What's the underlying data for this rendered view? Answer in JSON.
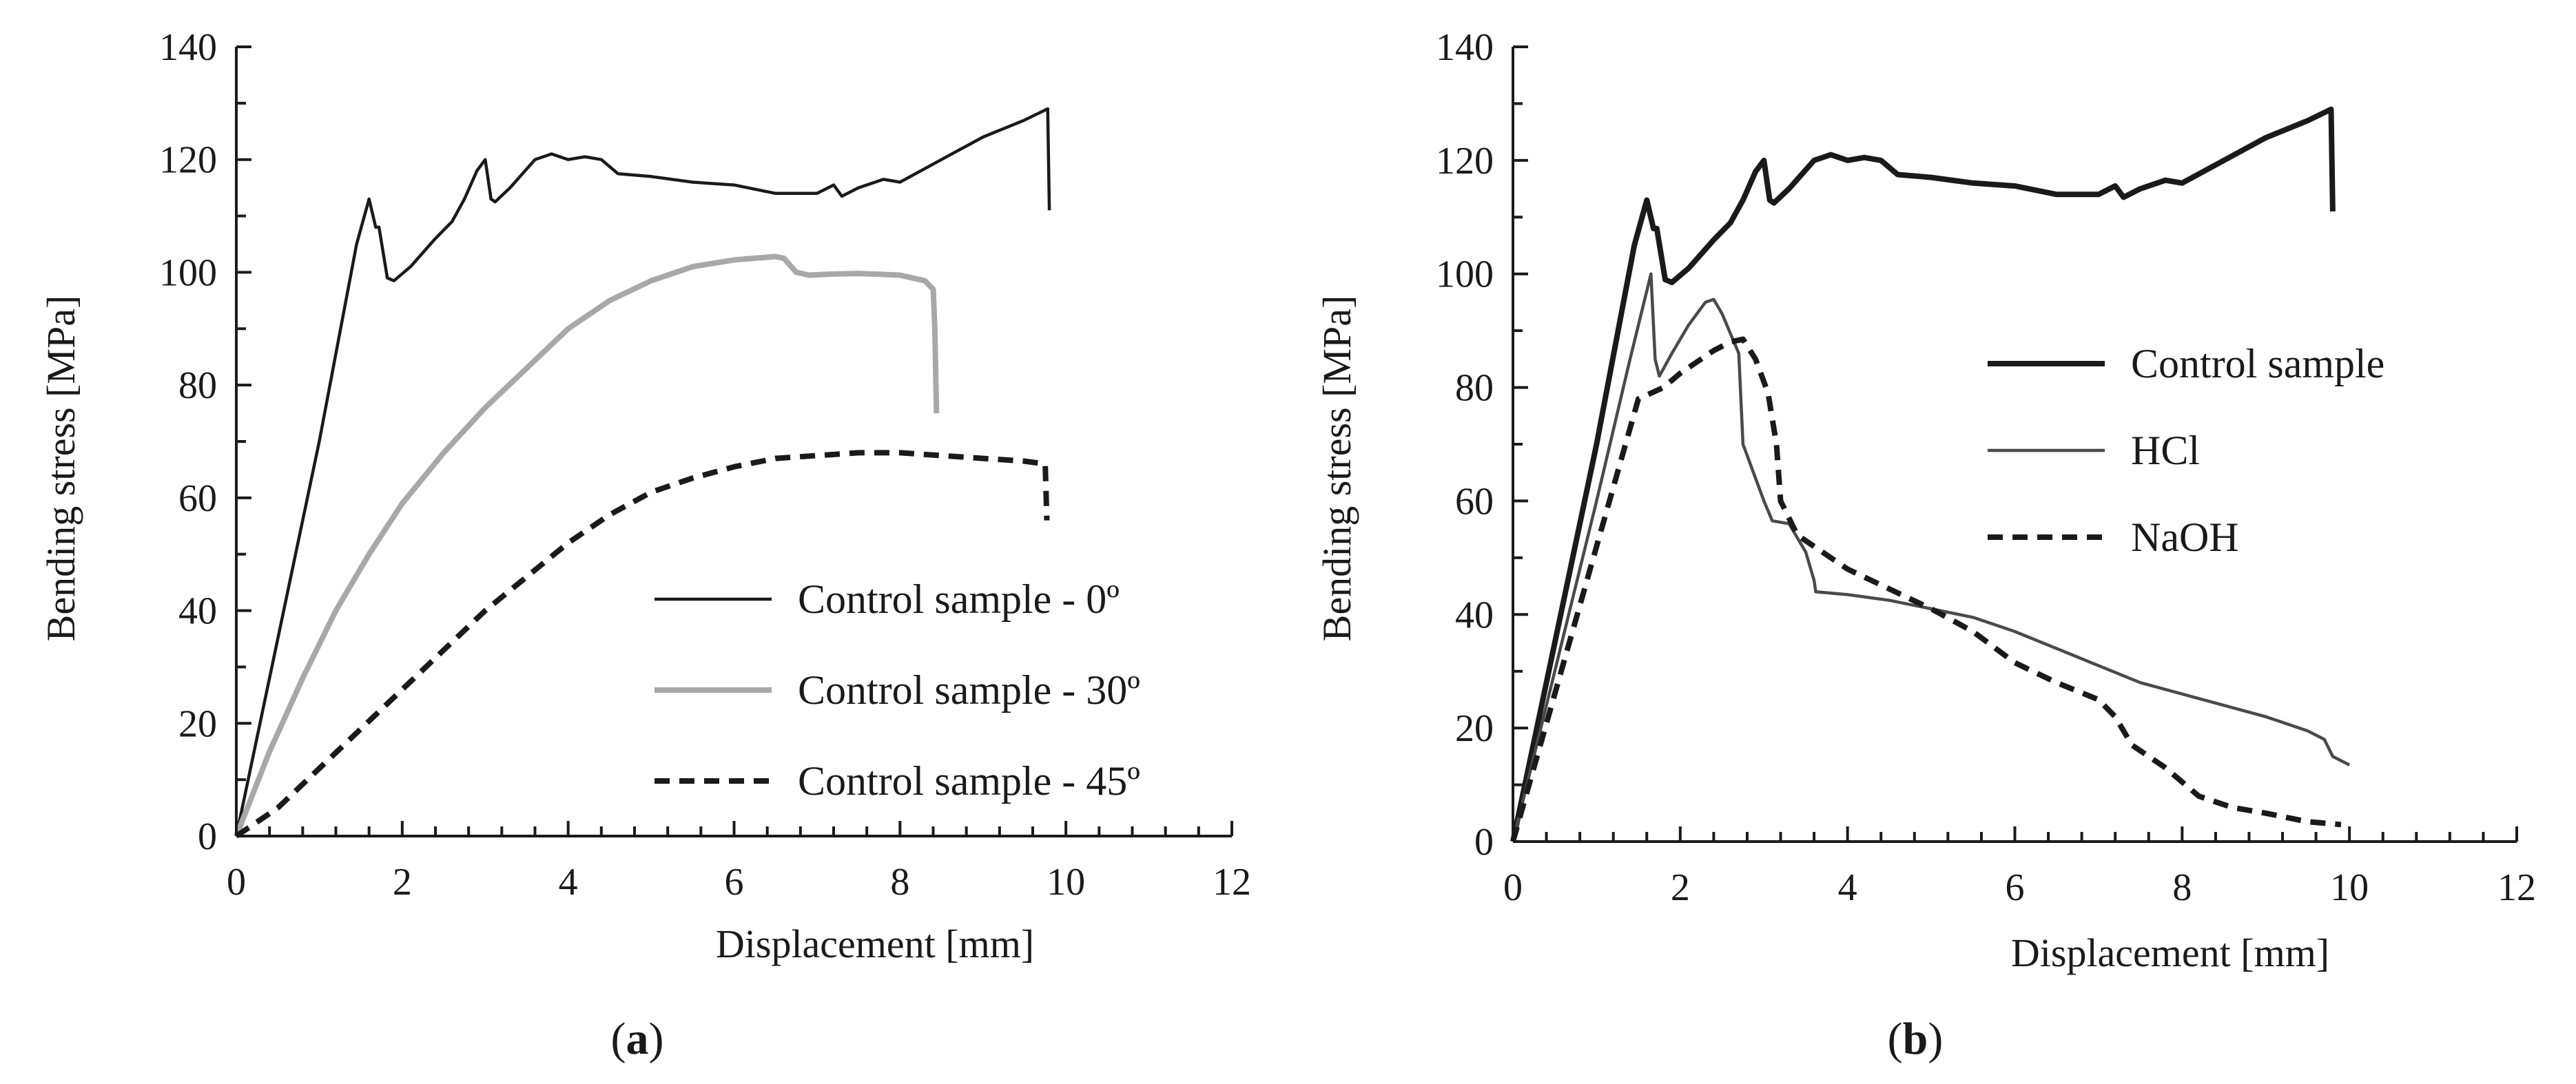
{
  "figure": {
    "panels": [
      {
        "letter": "a",
        "open": "(",
        "close": ")"
      },
      {
        "letter": "b",
        "open": "(",
        "close": ")"
      }
    ]
  },
  "colors": {
    "black": "#1a1a1a",
    "gray": "#a8a8a8",
    "axis": "#1a1a1a"
  },
  "chart_data": [
    {
      "type": "line",
      "panel": "a",
      "title": "",
      "xlabel": "Displacement [mm]",
      "ylabel": "Bending stress [MPa]",
      "xlim": [
        0,
        12
      ],
      "ylim": [
        0,
        140
      ],
      "xticks": [
        0,
        2,
        4,
        6,
        8,
        10,
        12
      ],
      "yticks": [
        0,
        20,
        40,
        60,
        80,
        100,
        120,
        140
      ],
      "grid": false,
      "legend_position": "bottom-right",
      "series": [
        {
          "name": "Control sample - 0º",
          "style": "solid",
          "color": "#1a1a1a",
          "width": "thin",
          "points": [
            [
              0,
              0
            ],
            [
              0.5,
              35
            ],
            [
              1.0,
              70
            ],
            [
              1.45,
              105
            ],
            [
              1.6,
              113
            ],
            [
              1.68,
              108
            ],
            [
              1.72,
              108
            ],
            [
              1.82,
              99
            ],
            [
              1.9,
              98.5
            ],
            [
              2.1,
              101
            ],
            [
              2.4,
              106
            ],
            [
              2.6,
              109
            ],
            [
              2.75,
              113
            ],
            [
              2.9,
              118
            ],
            [
              3.0,
              120
            ],
            [
              3.07,
              113
            ],
            [
              3.12,
              112.5
            ],
            [
              3.3,
              115
            ],
            [
              3.6,
              120
            ],
            [
              3.8,
              121
            ],
            [
              4.0,
              120
            ],
            [
              4.2,
              120.5
            ],
            [
              4.4,
              120
            ],
            [
              4.6,
              117.5
            ],
            [
              5.0,
              117
            ],
            [
              5.5,
              116
            ],
            [
              6.0,
              115.5
            ],
            [
              6.5,
              114
            ],
            [
              7.0,
              114
            ],
            [
              7.2,
              115.5
            ],
            [
              7.3,
              113.5
            ],
            [
              7.5,
              115
            ],
            [
              7.8,
              116.5
            ],
            [
              8.0,
              116
            ],
            [
              8.5,
              120
            ],
            [
              9.0,
              124
            ],
            [
              9.5,
              127
            ],
            [
              9.78,
              129
            ],
            [
              9.8,
              111
            ]
          ]
        },
        {
          "name": "Control sample - 30º",
          "style": "solid",
          "color": "#a8a8a8",
          "width": "thick",
          "points": [
            [
              0,
              0
            ],
            [
              0.4,
              15
            ],
            [
              0.8,
              28
            ],
            [
              1.2,
              40
            ],
            [
              1.6,
              50
            ],
            [
              2.0,
              59
            ],
            [
              2.5,
              68
            ],
            [
              3.0,
              76
            ],
            [
              3.5,
              83
            ],
            [
              4.0,
              90
            ],
            [
              4.5,
              95
            ],
            [
              5.0,
              98.5
            ],
            [
              5.5,
              101
            ],
            [
              6.0,
              102.2
            ],
            [
              6.5,
              102.8
            ],
            [
              6.6,
              102.5
            ],
            [
              6.75,
              100
            ],
            [
              6.9,
              99.5
            ],
            [
              7.2,
              99.7
            ],
            [
              7.5,
              99.8
            ],
            [
              8.0,
              99.5
            ],
            [
              8.3,
              98.5
            ],
            [
              8.4,
              97
            ],
            [
              8.42,
              90
            ],
            [
              8.44,
              75
            ]
          ]
        },
        {
          "name": "Control sample - 45º",
          "style": "dashed",
          "color": "#1a1a1a",
          "width": "thick",
          "points": [
            [
              0,
              0
            ],
            [
              0.5,
              5
            ],
            [
              1.0,
              12
            ],
            [
              1.5,
              19
            ],
            [
              2.0,
              26
            ],
            [
              2.5,
              33
            ],
            [
              3.0,
              40
            ],
            [
              3.5,
              46
            ],
            [
              4.0,
              52
            ],
            [
              4.5,
              57
            ],
            [
              5.0,
              61
            ],
            [
              5.5,
              63.5
            ],
            [
              6.0,
              65.5
            ],
            [
              6.5,
              67
            ],
            [
              7.0,
              67.5
            ],
            [
              7.5,
              68
            ],
            [
              8.0,
              68
            ],
            [
              8.5,
              67.5
            ],
            [
              9.0,
              67
            ],
            [
              9.5,
              66.5
            ],
            [
              9.75,
              66
            ],
            [
              9.77,
              56
            ]
          ]
        }
      ]
    },
    {
      "type": "line",
      "panel": "b",
      "title": "",
      "xlabel": "Displacement [mm]",
      "ylabel": "Bending stress [MPa]",
      "xlim": [
        0,
        12
      ],
      "ylim": [
        0,
        140
      ],
      "xticks": [
        0,
        2,
        4,
        6,
        8,
        10,
        12
      ],
      "yticks": [
        0,
        20,
        40,
        60,
        80,
        100,
        120,
        140
      ],
      "grid": false,
      "legend_position": "top-right",
      "series": [
        {
          "name": "Control sample",
          "style": "solid",
          "color": "#1a1a1a",
          "width": "thick",
          "points": [
            [
              0,
              0
            ],
            [
              0.5,
              35
            ],
            [
              1.0,
              70
            ],
            [
              1.45,
              105
            ],
            [
              1.6,
              113
            ],
            [
              1.68,
              108
            ],
            [
              1.72,
              108
            ],
            [
              1.82,
              99
            ],
            [
              1.9,
              98.5
            ],
            [
              2.1,
              101
            ],
            [
              2.4,
              106
            ],
            [
              2.6,
              109
            ],
            [
              2.75,
              113
            ],
            [
              2.9,
              118
            ],
            [
              3.0,
              120
            ],
            [
              3.07,
              113
            ],
            [
              3.12,
              112.5
            ],
            [
              3.3,
              115
            ],
            [
              3.6,
              120
            ],
            [
              3.8,
              121
            ],
            [
              4.0,
              120
            ],
            [
              4.2,
              120.5
            ],
            [
              4.4,
              120
            ],
            [
              4.6,
              117.5
            ],
            [
              5.0,
              117
            ],
            [
              5.5,
              116
            ],
            [
              6.0,
              115.5
            ],
            [
              6.5,
              114
            ],
            [
              7.0,
              114
            ],
            [
              7.2,
              115.5
            ],
            [
              7.3,
              113.5
            ],
            [
              7.5,
              115
            ],
            [
              7.8,
              116.5
            ],
            [
              8.0,
              116
            ],
            [
              8.5,
              120
            ],
            [
              9.0,
              124
            ],
            [
              9.5,
              127
            ],
            [
              9.78,
              129
            ],
            [
              9.8,
              111
            ]
          ]
        },
        {
          "name": "HCl",
          "style": "solid",
          "color": "#4a4a4a",
          "width": "thin",
          "points": [
            [
              0,
              0
            ],
            [
              0.5,
              30
            ],
            [
              1.0,
              60
            ],
            [
              1.4,
              85
            ],
            [
              1.6,
              97
            ],
            [
              1.65,
              100
            ],
            [
              1.7,
              85
            ],
            [
              1.75,
              82
            ],
            [
              1.9,
              86
            ],
            [
              2.1,
              91
            ],
            [
              2.3,
              95
            ],
            [
              2.4,
              95.5
            ],
            [
              2.5,
              93
            ],
            [
              2.7,
              86
            ],
            [
              2.75,
              70
            ],
            [
              2.8,
              68
            ],
            [
              3.0,
              60
            ],
            [
              3.1,
              56.5
            ],
            [
              3.3,
              56
            ],
            [
              3.5,
              51
            ],
            [
              3.6,
              46
            ],
            [
              3.62,
              44
            ],
            [
              4.0,
              43.5
            ],
            [
              4.5,
              42.5
            ],
            [
              5.0,
              41
            ],
            [
              5.5,
              39.5
            ],
            [
              6.0,
              37
            ],
            [
              6.5,
              34
            ],
            [
              7.0,
              31
            ],
            [
              7.5,
              28
            ],
            [
              8.0,
              26
            ],
            [
              8.5,
              24
            ],
            [
              9.0,
              22
            ],
            [
              9.5,
              19.5
            ],
            [
              9.7,
              18
            ],
            [
              9.8,
              15
            ],
            [
              10.0,
              13.5
            ]
          ]
        },
        {
          "name": "NaOH",
          "style": "dashed",
          "color": "#1a1a1a",
          "width": "thick",
          "points": [
            [
              0,
              0
            ],
            [
              0.5,
              26
            ],
            [
              1.0,
              52
            ],
            [
              1.5,
              78
            ],
            [
              1.8,
              80
            ],
            [
              2.0,
              82.5
            ],
            [
              2.2,
              84.5
            ],
            [
              2.4,
              86.5
            ],
            [
              2.6,
              88
            ],
            [
              2.75,
              88.5
            ],
            [
              2.9,
              85
            ],
            [
              3.05,
              79
            ],
            [
              3.15,
              70
            ],
            [
              3.2,
              60
            ],
            [
              3.4,
              54
            ],
            [
              3.7,
              51
            ],
            [
              4.0,
              48
            ],
            [
              4.5,
              44.5
            ],
            [
              5.0,
              41
            ],
            [
              5.5,
              37
            ],
            [
              6.0,
              31.5
            ],
            [
              6.5,
              28
            ],
            [
              7.0,
              25
            ],
            [
              7.2,
              22
            ],
            [
              7.4,
              17
            ],
            [
              7.8,
              13
            ],
            [
              8.2,
              8
            ],
            [
              8.6,
              6
            ],
            [
              9.0,
              5
            ],
            [
              9.5,
              3.5
            ],
            [
              9.9,
              3
            ]
          ]
        }
      ]
    }
  ]
}
